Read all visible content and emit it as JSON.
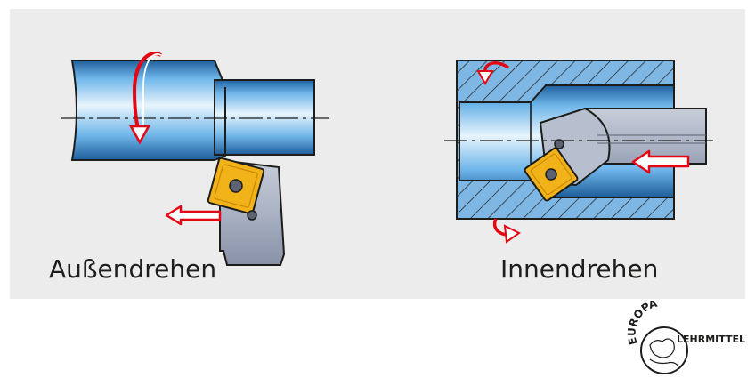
{
  "figure": {
    "outer_label": "Außendrehen",
    "inner_label": "Innendrehen"
  },
  "logo": {
    "arc_text": "EUROPA",
    "side_text": "LEHRMITTEL"
  },
  "colors": {
    "panel_background": "#ececec",
    "workpiece_blue": "#3f9ad9",
    "tool_grey": "#9aa3b6",
    "insert_yellow": "#f2b21a",
    "arrow_red": "#e30613"
  }
}
